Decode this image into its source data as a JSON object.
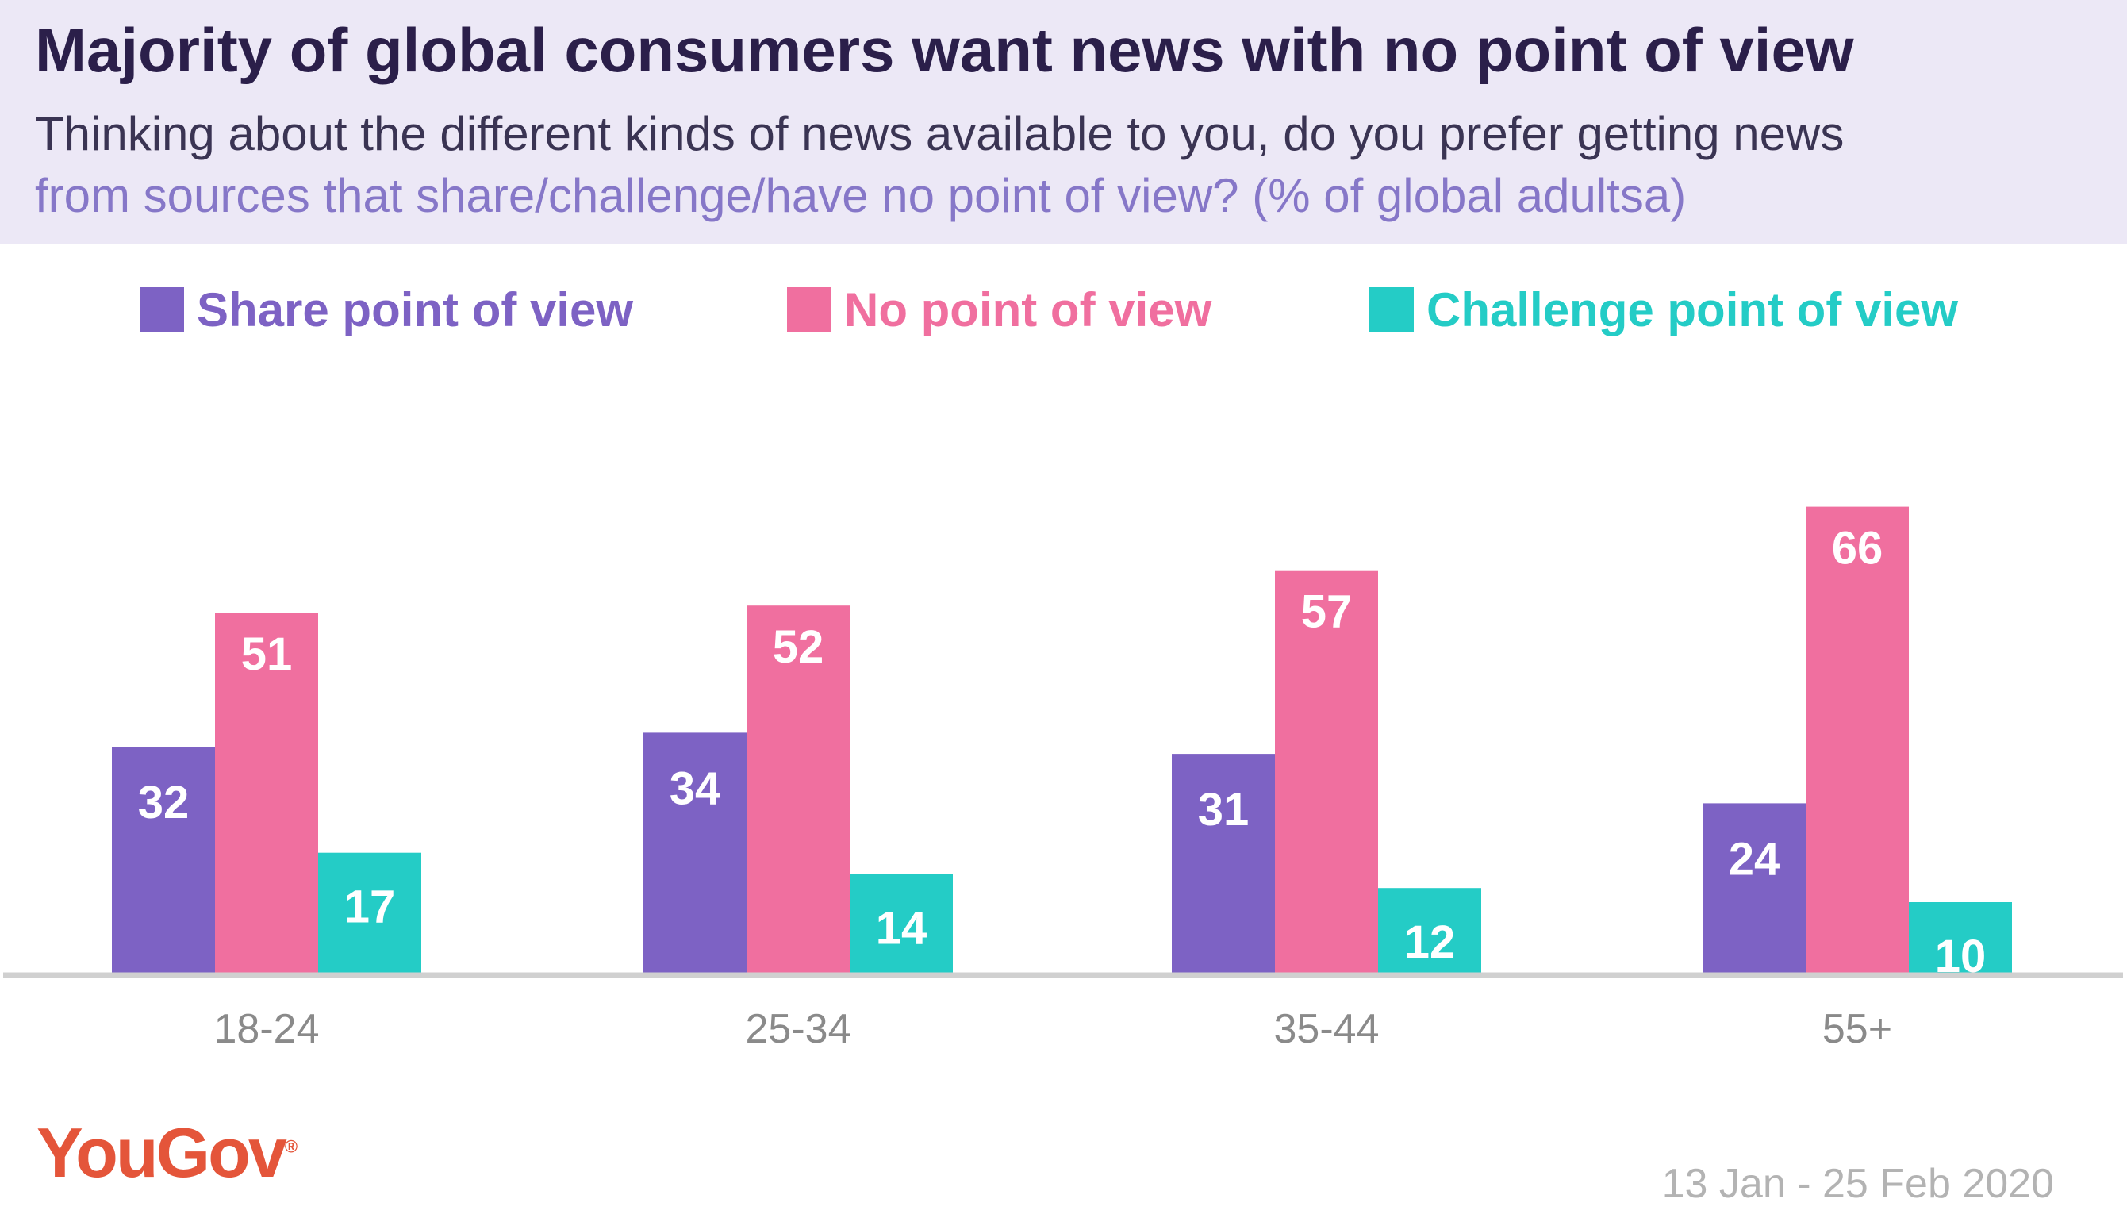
{
  "header": {
    "title": "Majority of global consumers want news with no point of view",
    "subtitle_line1": "Thinking about the different kinds of news available to you, do you prefer getting news",
    "subtitle_line2": "from sources that share/challenge/have no point of view? (% of global adultsa)"
  },
  "footer": {
    "logo": "YouGov",
    "date_range": "13 Jan - 25 Feb 2020"
  },
  "colors": {
    "share": "#7d62c4",
    "none": "#f06f9f",
    "challenge": "#24ccc6",
    "axis": "#d0d0d0",
    "tick_label": "#8a8a8a"
  },
  "chart_data": {
    "type": "bar",
    "categories": [
      "18-24",
      "25-34",
      "35-44",
      "55+"
    ],
    "series": [
      {
        "name": "Share point of view",
        "values": [
          32,
          34,
          31,
          24
        ]
      },
      {
        "name": "No point of view",
        "values": [
          51,
          52,
          57,
          66
        ]
      },
      {
        "name": "Challenge point of view",
        "values": [
          17,
          14,
          12,
          10
        ]
      }
    ],
    "xlabel": "",
    "ylabel": "",
    "ylim": [
      0,
      70
    ],
    "grid": false,
    "legend": "top",
    "data_labels": true
  }
}
